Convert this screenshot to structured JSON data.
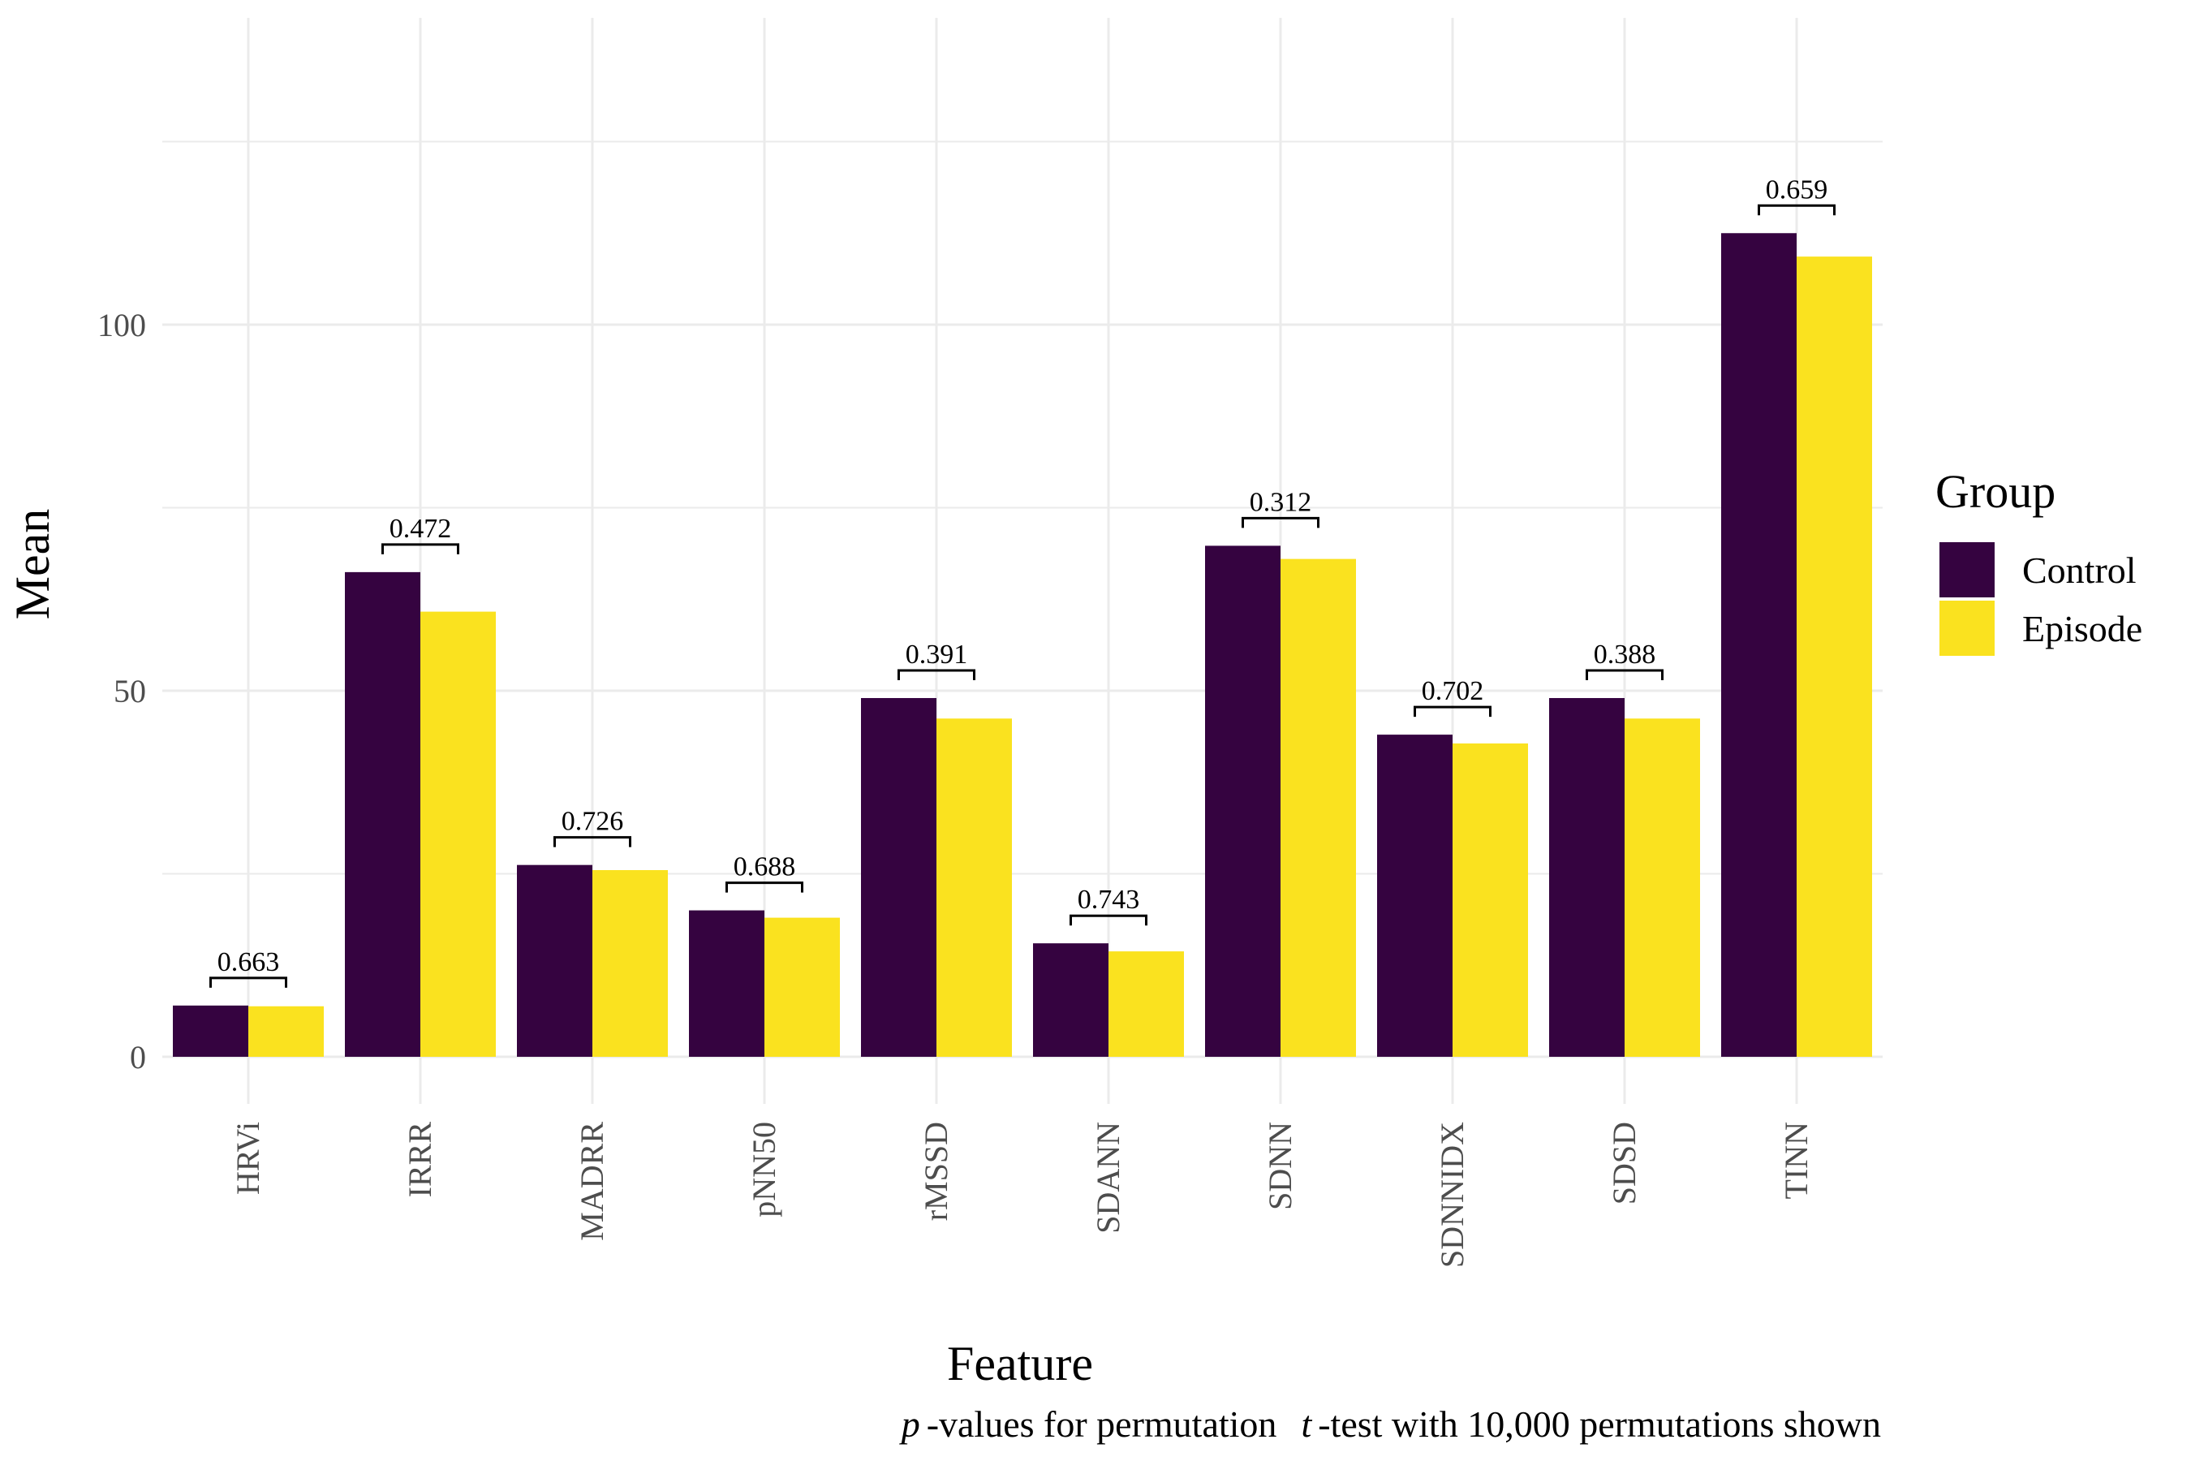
{
  "chart_data": {
    "type": "bar",
    "xlabel": "Feature",
    "ylabel": "Mean",
    "ylim": [
      -4,
      140
    ],
    "yticks": [
      0,
      50,
      100
    ],
    "grid": true,
    "categories": [
      "HRVi",
      "IRRR",
      "MADRR",
      "pNN50",
      "rMSSD",
      "SDANN",
      "SDNN",
      "SDNNIDX",
      "SDSD",
      "TINN"
    ],
    "series": [
      {
        "name": "Control",
        "color": "#350340",
        "values": [
          7.0,
          66.2,
          26.2,
          20.0,
          49.0,
          15.5,
          69.8,
          44.0,
          49.0,
          112.5
        ]
      },
      {
        "name": "Episode",
        "color": "#fae21f",
        "values": [
          6.9,
          60.8,
          25.5,
          19.0,
          46.2,
          14.4,
          68.0,
          42.8,
          46.2,
          109.3
        ]
      }
    ],
    "pvalues": [
      "0.663",
      "0.472",
      "0.726",
      "0.688",
      "0.391",
      "0.743",
      "0.312",
      "0.702",
      "0.388",
      "0.659"
    ],
    "legend": {
      "title": "Group",
      "position": "right"
    },
    "caption": {
      "p_symbol": "p",
      "part1": "-values for permutation",
      "t_symbol": "t",
      "part2": "-test with 10,000 permutations shown"
    }
  }
}
